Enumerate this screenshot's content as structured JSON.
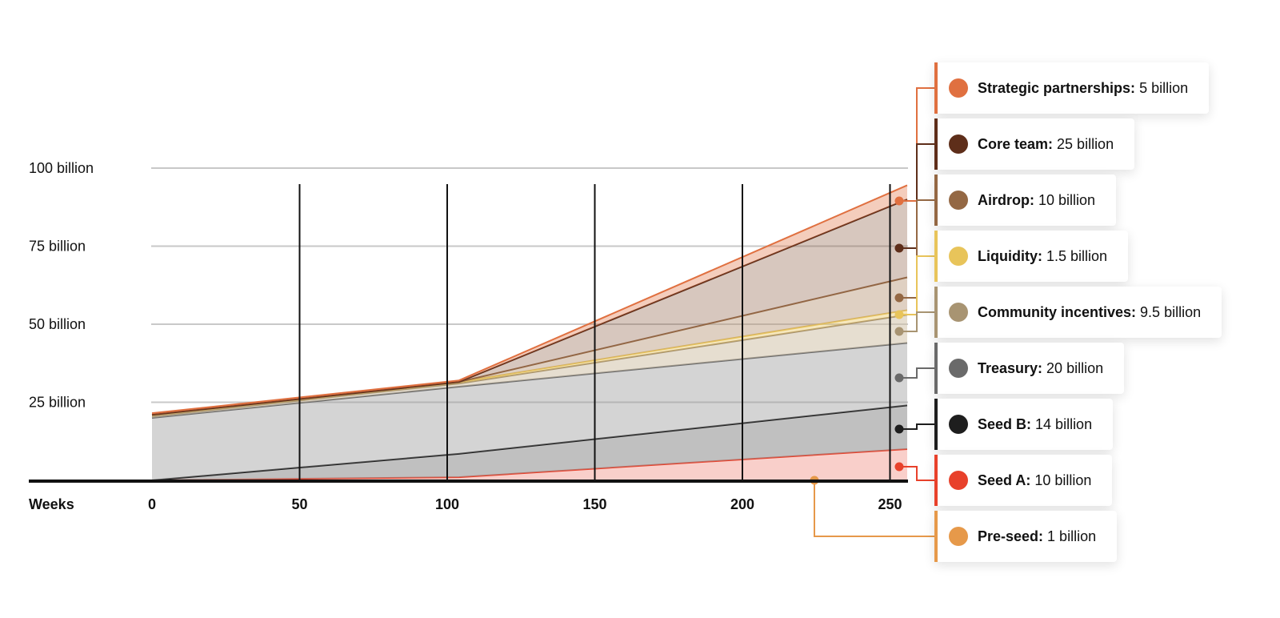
{
  "chart_data": {
    "type": "area",
    "title": "",
    "xlabel": "Weeks",
    "ylabel": "",
    "x_ticks": [
      "0",
      "50",
      "100",
      "150",
      "200",
      "250"
    ],
    "y_ticks": [
      "25 billion",
      "50 billion",
      "75 billion",
      "100 billion"
    ],
    "xlim": [
      0,
      256
    ],
    "ylim": [
      0,
      100
    ],
    "grid": "horizontal lines at y ticks, vertical lines at x ticks",
    "legend_position": "right",
    "x": [
      0,
      104,
      256
    ],
    "series": [
      {
        "name": "Pre-seed",
        "amount": "1 billion",
        "color": "#E6994A",
        "values": [
          0,
          0,
          0
        ],
        "end_value": 0.5
      },
      {
        "name": "Seed A",
        "amount": "10 billion",
        "color": "#E8412B",
        "values": [
          0,
          1,
          10
        ]
      },
      {
        "name": "Seed B",
        "amount": "14 billion",
        "color": "#1E1E1E",
        "values": [
          0,
          8.5,
          24
        ]
      },
      {
        "name": "Treasury",
        "amount": "20 billion",
        "color": "#6A6A6A",
        "values": [
          20,
          30,
          44
        ]
      },
      {
        "name": "Community incentives",
        "amount": "9.5 billion",
        "color": "#A89472",
        "values": [
          20.5,
          31,
          53
        ]
      },
      {
        "name": "Liquidity",
        "amount": "1.5 billion",
        "color": "#E8C45A",
        "values": [
          21,
          31.5,
          54.5
        ]
      },
      {
        "name": "Airdrop",
        "amount": "10 billion",
        "color": "#946844",
        "values": [
          21,
          31.5,
          65
        ]
      },
      {
        "name": "Core team",
        "amount": "25 billion",
        "color": "#5E2E1A",
        "values": [
          21,
          31.5,
          90
        ]
      },
      {
        "name": "Strategic partnerships",
        "amount": "5 billion",
        "color": "#E07040",
        "values": [
          21.5,
          32,
          94.5
        ]
      }
    ]
  },
  "legend": [
    {
      "name": "Strategic partnerships:",
      "amount": " 5 billion",
      "color": "#E07040"
    },
    {
      "name": "Core team:",
      "amount": " 25 billion",
      "color": "#5E2E1A"
    },
    {
      "name": "Airdrop:",
      "amount": " 10 billion",
      "color": "#946844"
    },
    {
      "name": "Liquidity:",
      "amount": " 1.5 billion",
      "color": "#E8C45A"
    },
    {
      "name": "Community incentives:",
      "amount": " 9.5 billion",
      "color": "#A89472"
    },
    {
      "name": "Treasury:",
      "amount": " 20 billion",
      "color": "#6A6A6A"
    },
    {
      "name": "Seed B:",
      "amount": " 14 billion",
      "color": "#1E1E1E"
    },
    {
      "name": "Seed A:",
      "amount": " 10 billion",
      "color": "#E8412B"
    },
    {
      "name": "Pre-seed:",
      "amount": " 1 billion",
      "color": "#E6994A"
    }
  ]
}
